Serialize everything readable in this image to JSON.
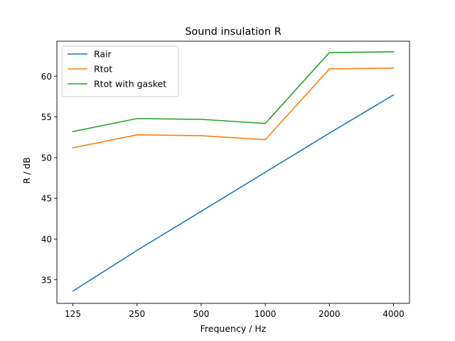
{
  "chart_data": {
    "type": "line",
    "title": "Sound insulation R",
    "xlabel": "Frequency / Hz",
    "ylabel": "R / dB",
    "categories": [
      "125",
      "250",
      "500",
      "1000",
      "2000",
      "4000"
    ],
    "yticks": [
      35,
      40,
      45,
      50,
      55,
      60
    ],
    "ylim": [
      32.1,
      64.3
    ],
    "grid": false,
    "legend_position": "top-left",
    "series": [
      {
        "name": "Rair",
        "color": "#1f77b4",
        "values": [
          33.6,
          38.6,
          43.4,
          48.2,
          53.0,
          57.7
        ]
      },
      {
        "name": "Rtot",
        "color": "#ff7f0e",
        "values": [
          51.2,
          52.8,
          52.7,
          52.2,
          60.9,
          61.0
        ]
      },
      {
        "name": "Rtot with gasket",
        "color": "#2ca02c",
        "values": [
          53.2,
          54.8,
          54.7,
          54.2,
          62.9,
          63.0
        ]
      }
    ]
  }
}
